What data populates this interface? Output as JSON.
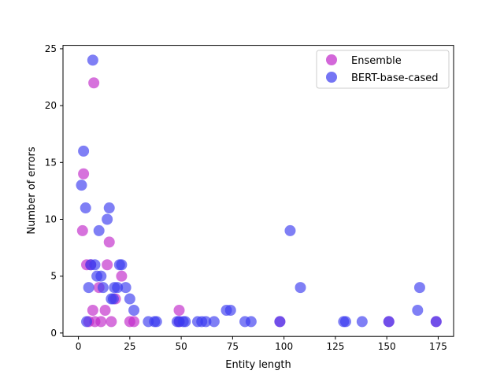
{
  "chart_data": {
    "type": "scatter",
    "title": "",
    "xlabel": "Entity length",
    "ylabel": "Number of errors",
    "xlim": [
      -7.5,
      182.5
    ],
    "ylim": [
      -0.3,
      25.3
    ],
    "xticks": [
      0,
      25,
      50,
      75,
      100,
      125,
      150,
      175
    ],
    "yticks": [
      0,
      5,
      10,
      15,
      20,
      25
    ],
    "grid": false,
    "legend_position": "top-right",
    "series": [
      {
        "name": "Ensemble",
        "color": "#c026c9",
        "points": [
          [
            2,
            9
          ],
          [
            2.5,
            14
          ],
          [
            4,
            6
          ],
          [
            5,
            1
          ],
          [
            6,
            6
          ],
          [
            7,
            2
          ],
          [
            7.5,
            22
          ],
          [
            8,
            1
          ],
          [
            10,
            4
          ],
          [
            11,
            1
          ],
          [
            13,
            2
          ],
          [
            14,
            6
          ],
          [
            15,
            8
          ],
          [
            16,
            1
          ],
          [
            18,
            3
          ],
          [
            21,
            5
          ],
          [
            25,
            1
          ],
          [
            27,
            1
          ],
          [
            49,
            2
          ],
          [
            49,
            1
          ],
          [
            98,
            1
          ],
          [
            151,
            1
          ],
          [
            174,
            1
          ]
        ]
      },
      {
        "name": "BERT-base-cased",
        "color": "#3b3bf0",
        "points": [
          [
            1.5,
            13
          ],
          [
            2.5,
            16
          ],
          [
            3.5,
            11
          ],
          [
            4,
            1
          ],
          [
            5,
            4
          ],
          [
            6,
            6
          ],
          [
            7,
            24
          ],
          [
            8,
            6
          ],
          [
            9,
            5
          ],
          [
            10,
            9
          ],
          [
            11,
            5
          ],
          [
            12,
            4
          ],
          [
            14,
            10
          ],
          [
            15,
            11
          ],
          [
            16,
            3
          ],
          [
            17,
            3
          ],
          [
            17.5,
            4
          ],
          [
            19,
            4
          ],
          [
            20,
            6
          ],
          [
            21,
            6
          ],
          [
            23,
            4
          ],
          [
            25,
            3
          ],
          [
            27,
            2
          ],
          [
            34,
            1
          ],
          [
            37,
            1
          ],
          [
            38,
            1
          ],
          [
            48,
            1
          ],
          [
            49,
            1
          ],
          [
            51,
            1
          ],
          [
            52,
            1
          ],
          [
            58,
            1
          ],
          [
            60,
            1
          ],
          [
            62,
            1
          ],
          [
            66,
            1
          ],
          [
            72,
            2
          ],
          [
            74,
            2
          ],
          [
            81,
            1
          ],
          [
            84,
            1
          ],
          [
            98,
            1
          ],
          [
            103,
            9
          ],
          [
            108,
            4
          ],
          [
            129,
            1
          ],
          [
            130,
            1
          ],
          [
            138,
            1
          ],
          [
            151,
            1
          ],
          [
            165,
            2
          ],
          [
            166,
            4
          ],
          [
            174,
            1
          ]
        ]
      }
    ]
  }
}
